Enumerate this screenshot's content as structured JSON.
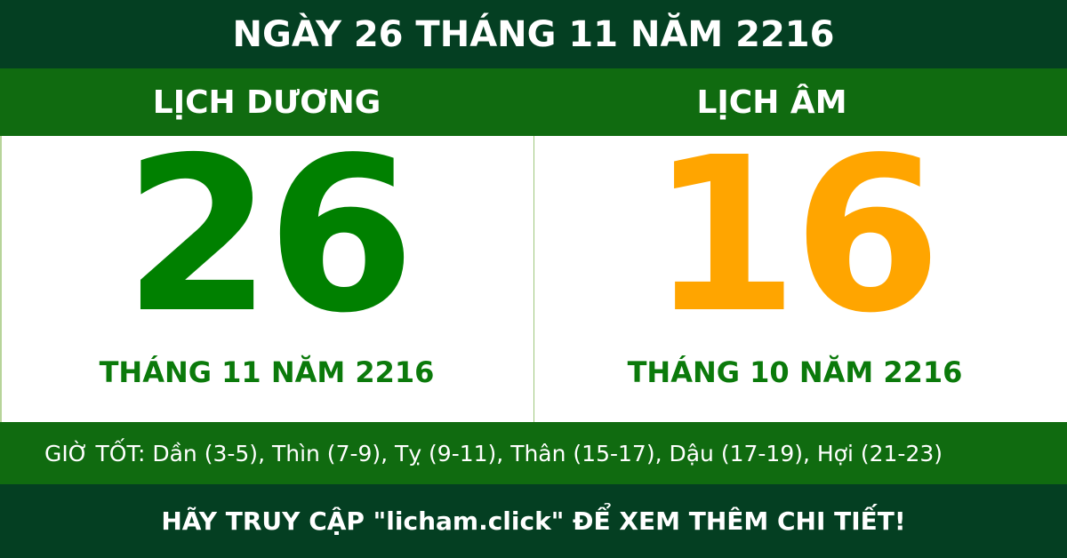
{
  "header": {
    "title": "NGÀY 26 THÁNG 11 NĂM 2216"
  },
  "solar": {
    "label": "LỊCH DƯƠNG",
    "day": "26",
    "month_year": "THÁNG 11 NĂM 2216",
    "color": "#008000"
  },
  "lunar": {
    "label": "LỊCH ÂM",
    "day": "16",
    "month_year": "THÁNG 10 NĂM 2216",
    "color": "#FFA500"
  },
  "good_hours": "GIỜ TỐT: Dần (3-5), Thìn (7-9), Tỵ (9-11), Thân (15-17), Dậu (17-19), Hợi (21-23)",
  "footer": "HÃY TRUY CẬP \"licham.click\" ĐỂ XEM THÊM CHI TIẾT!",
  "colors": {
    "dark_green": "#043f22",
    "green": "#106b10"
  }
}
